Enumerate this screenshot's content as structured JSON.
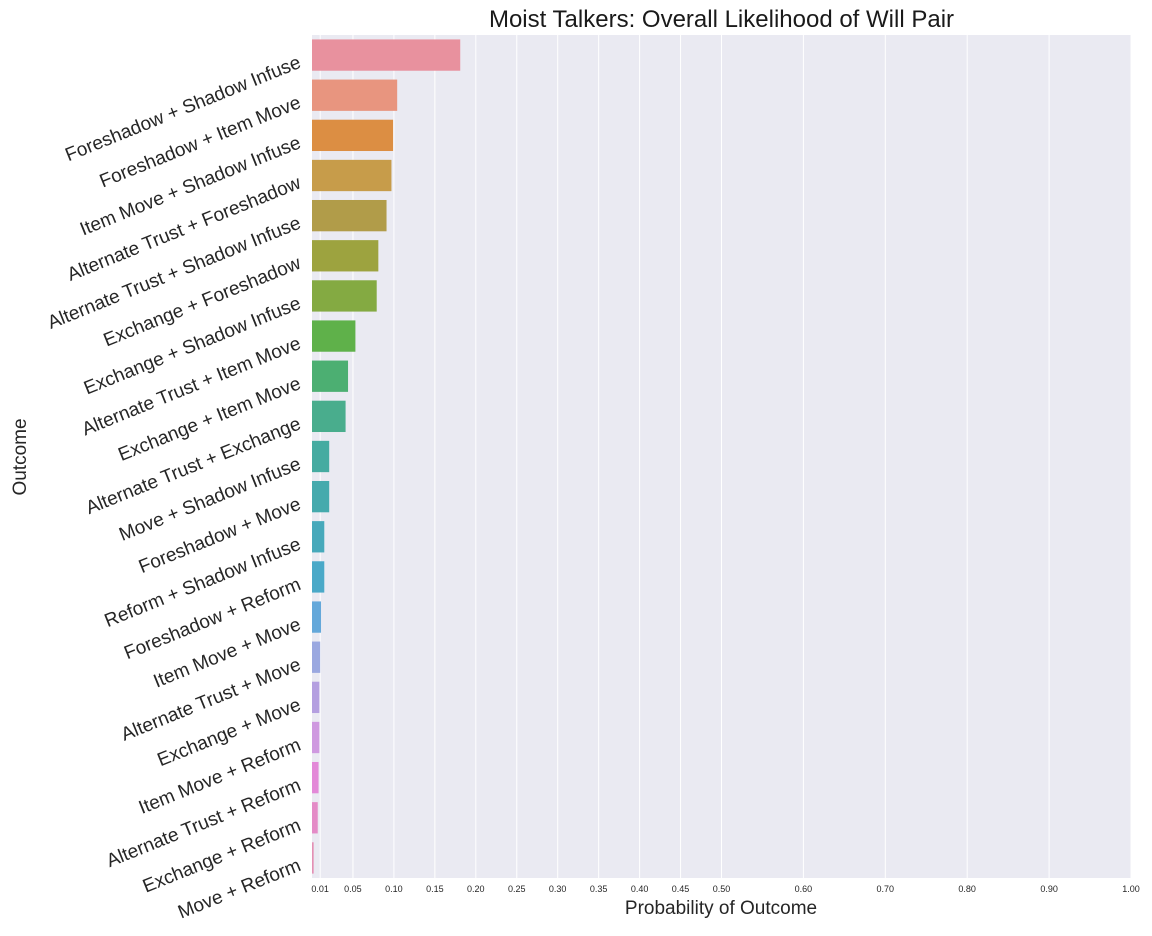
{
  "chart_data": {
    "type": "bar",
    "orientation": "horizontal",
    "title": "Moist Talkers: Overall Likelihood of Will Pair",
    "xlabel": "Probability of Outcome",
    "ylabel": "Outcome",
    "xlim": [
      0,
      1.0
    ],
    "xticks": [
      "0.01",
      "0.05",
      "0.10",
      "0.15",
      "0.20",
      "0.25",
      "0.30",
      "0.35",
      "0.40",
      "0.45",
      "0.50",
      "0.60",
      "0.70",
      "0.80",
      "0.90",
      "1.00"
    ],
    "grid": true,
    "categories": [
      "Foreshadow + Shadow Infuse",
      "Foreshadow + Item Move",
      "Item Move + Shadow Infuse",
      "Alternate Trust + Foreshadow",
      "Alternate Trust + Shadow Infuse",
      "Exchange + Foreshadow",
      "Exchange + Shadow Infuse",
      "Alternate Trust + Item Move",
      "Exchange + Item Move",
      "Alternate Trust + Exchange",
      "Move + Shadow Infuse",
      "Foreshadow + Move",
      "Reform + Shadow Infuse",
      "Foreshadow + Reform",
      "Item Move + Move",
      "Alternate Trust + Move",
      "Exchange + Move",
      "Item Move + Reform",
      "Alternate Trust + Reform",
      "Exchange + Reform",
      "Move + Reform"
    ],
    "values": [
      0.181,
      0.104,
      0.099,
      0.097,
      0.091,
      0.081,
      0.079,
      0.053,
      0.044,
      0.041,
      0.021,
      0.021,
      0.015,
      0.015,
      0.011,
      0.01,
      0.009,
      0.009,
      0.008,
      0.007,
      0.002
    ],
    "colors": [
      "#e8919e",
      "#e8957f",
      "#dc8e43",
      "#c79c4a",
      "#b19c49",
      "#9da33f",
      "#84aa42",
      "#5fb14a",
      "#4caf72",
      "#49ad8d",
      "#45aba1",
      "#45aaad",
      "#47a9bb",
      "#4aa9c8",
      "#64a8da",
      "#9aa8e0",
      "#b49fe0",
      "#cf99e0",
      "#e389d8",
      "#e48bc7",
      "#e490b5"
    ]
  }
}
